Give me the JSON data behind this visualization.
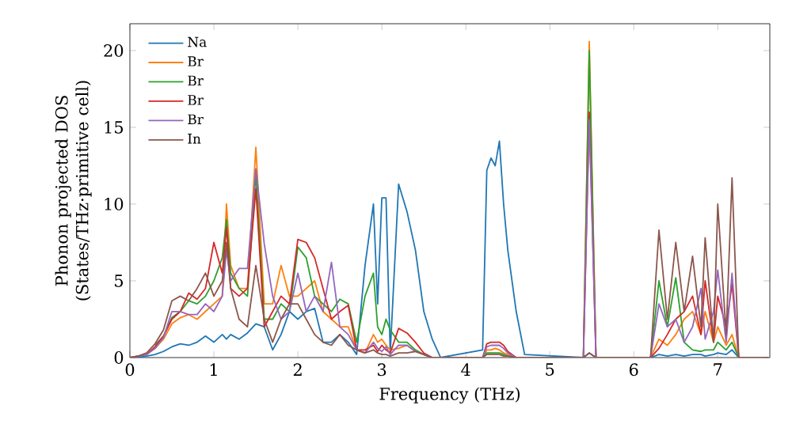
{
  "chart_data": {
    "type": "line",
    "xlabel": "Frequency (THz)",
    "ylabel": "Phonon projected DOS (States/THz·primitive cell)",
    "x": [
      0,
      0.1,
      0.2,
      0.3,
      0.4,
      0.5,
      0.6,
      0.7,
      0.8,
      0.9,
      1.0,
      1.1,
      1.15,
      1.2,
      1.3,
      1.4,
      1.5,
      1.6,
      1.7,
      1.8,
      1.9,
      2.0,
      2.1,
      2.2,
      2.3,
      2.4,
      2.5,
      2.6,
      2.7,
      2.8,
      2.9,
      2.95,
      3.0,
      3.05,
      3.1,
      3.2,
      3.3,
      3.4,
      3.5,
      3.6,
      3.7,
      4.2,
      4.25,
      4.3,
      4.35,
      4.4,
      4.45,
      4.5,
      4.6,
      4.7,
      5.4,
      5.47,
      5.55,
      6.2,
      6.3,
      6.4,
      6.5,
      6.6,
      6.7,
      6.8,
      6.85,
      6.95,
      7.0,
      7.1,
      7.17,
      7.25,
      7.6
    ],
    "series": [
      {
        "name": "Na",
        "color": "#1f77b4",
        "values": [
          0,
          0,
          0.1,
          0.2,
          0.4,
          0.7,
          0.9,
          0.8,
          1.0,
          1.4,
          1.0,
          1.5,
          1.2,
          1.5,
          1.2,
          1.6,
          2.2,
          2.0,
          0.5,
          1.5,
          3.0,
          2.5,
          3.0,
          3.2,
          1.0,
          1.0,
          1.5,
          1.0,
          0.2,
          6.0,
          10.0,
          3.5,
          10.4,
          10.4,
          0.3,
          11.3,
          9.5,
          7.0,
          3.0,
          1.2,
          0,
          0.5,
          12.2,
          13.0,
          12.5,
          14.1,
          10.0,
          7.0,
          3.0,
          0.2,
          0,
          0.3,
          0,
          0,
          0.2,
          0.1,
          0.2,
          0.1,
          0.2,
          0.2,
          0.1,
          0.2,
          0.3,
          0.2,
          0.5,
          0,
          0
        ]
      },
      {
        "name": "Br",
        "color": "#ff7f0e",
        "values": [
          null,
          null,
          0.2,
          0.6,
          1.2,
          2.2,
          2.6,
          2.8,
          2.5,
          3.0,
          3.5,
          4.0,
          10.0,
          6.0,
          4.5,
          4.5,
          13.7,
          3.5,
          3.5,
          6.0,
          4.0,
          4.0,
          4.5,
          5.0,
          3.0,
          2.5,
          2.0,
          2.0,
          0.5,
          0.3,
          1.5,
          1.0,
          1.2,
          0.8,
          0.5,
          0.6,
          0.8,
          0.4,
          0.2,
          0,
          0,
          0,
          0.5,
          0.5,
          0.6,
          0.5,
          0.3,
          0.2,
          0,
          0,
          0,
          20.6,
          0,
          0,
          1.2,
          0.8,
          1.5,
          2.5,
          3.0,
          1.5,
          3.0,
          1.0,
          2.0,
          0.8,
          1.5,
          0,
          0
        ]
      },
      {
        "name": "Br",
        "color": "#2ca02c",
        "values": [
          null,
          null,
          null,
          0.8,
          1.4,
          2.6,
          3.0,
          3.7,
          3.5,
          4.0,
          5.0,
          6.5,
          9.0,
          5.5,
          4.5,
          4.0,
          12.0,
          2.5,
          2.5,
          3.5,
          3.0,
          7.2,
          6.5,
          4.0,
          3.5,
          3.0,
          3.8,
          3.5,
          1.0,
          4.0,
          5.5,
          2.0,
          1.5,
          2.5,
          1.8,
          1.0,
          1.0,
          0.5,
          0.2,
          0,
          0,
          0,
          0.3,
          0.3,
          0.3,
          0.3,
          0.2,
          0.1,
          0,
          0,
          0,
          20.0,
          0,
          0,
          5.0,
          2.0,
          5.2,
          1.0,
          0.5,
          0.4,
          0.5,
          0.5,
          1.0,
          0.5,
          1.0,
          0,
          0
        ]
      },
      {
        "name": "Br",
        "color": "#d62728",
        "values": [
          0,
          0.1,
          0.2,
          0.7,
          1.4,
          2.5,
          3.0,
          4.2,
          3.8,
          4.5,
          7.5,
          5.5,
          8.5,
          4.5,
          4.0,
          4.5,
          11.0,
          2.0,
          3.0,
          4.0,
          3.5,
          7.7,
          7.5,
          6.5,
          4.5,
          2.5,
          3.0,
          3.4,
          0.5,
          0.5,
          0.8,
          0.4,
          0.8,
          0.5,
          0.3,
          1.9,
          1.6,
          1.0,
          0.3,
          0,
          0,
          0,
          0.9,
          1.0,
          1.0,
          1.0,
          0.8,
          0.4,
          0,
          0,
          0,
          16.0,
          0,
          0,
          0.6,
          1.5,
          2.5,
          3.0,
          4.0,
          1.5,
          5.0,
          1.0,
          4.0,
          2.0,
          4.8,
          0,
          0
        ]
      },
      {
        "name": "Br",
        "color": "#9467bd",
        "values": [
          0,
          0.1,
          0.2,
          0.6,
          1.3,
          3.0,
          3.0,
          2.8,
          2.8,
          3.5,
          3.0,
          4.0,
          7.0,
          5.0,
          5.8,
          5.8,
          12.3,
          7.4,
          4.0,
          2.5,
          3.0,
          5.5,
          3.0,
          4.0,
          3.0,
          6.2,
          2.0,
          1.5,
          0.5,
          0.3,
          1.0,
          0.6,
          0.4,
          0.7,
          0.2,
          0.8,
          0.8,
          0.4,
          0.2,
          0,
          0,
          0,
          0.7,
          0.8,
          0.8,
          0.8,
          0.6,
          0.3,
          0,
          0,
          0,
          15.5,
          0,
          0,
          3.5,
          2.0,
          2.5,
          1.0,
          2.0,
          4.5,
          1.2,
          3.0,
          5.7,
          1.0,
          5.5,
          0,
          0
        ]
      },
      {
        "name": "In",
        "color": "#8c564b",
        "values": [
          0,
          0.1,
          0.3,
          0.9,
          1.8,
          3.7,
          4.0,
          3.7,
          4.5,
          5.5,
          4.0,
          5.0,
          7.5,
          4.5,
          2.5,
          2.0,
          6.0,
          2.5,
          1.0,
          2.5,
          3.5,
          3.5,
          2.5,
          1.5,
          1.0,
          0.8,
          1.5,
          0.8,
          0.5,
          0.3,
          0.5,
          0.3,
          0.2,
          0.2,
          0.1,
          0.3,
          0.3,
          0.4,
          0.2,
          0,
          0,
          0,
          0.2,
          0.2,
          0.2,
          0.2,
          0.1,
          0.1,
          0,
          0,
          0,
          0.3,
          0,
          0,
          8.3,
          2.5,
          7.5,
          3.0,
          6.6,
          2.0,
          7.8,
          1.0,
          10.0,
          1.5,
          11.7,
          0,
          0
        ]
      }
    ],
    "xlim": [
      0,
      7.62
    ],
    "ylim": [
      0,
      21.75
    ],
    "xticks": [
      0,
      1,
      2,
      3,
      4,
      5,
      6,
      7
    ],
    "yticks": [
      0,
      5,
      10,
      15,
      20
    ],
    "legend": "top left"
  }
}
